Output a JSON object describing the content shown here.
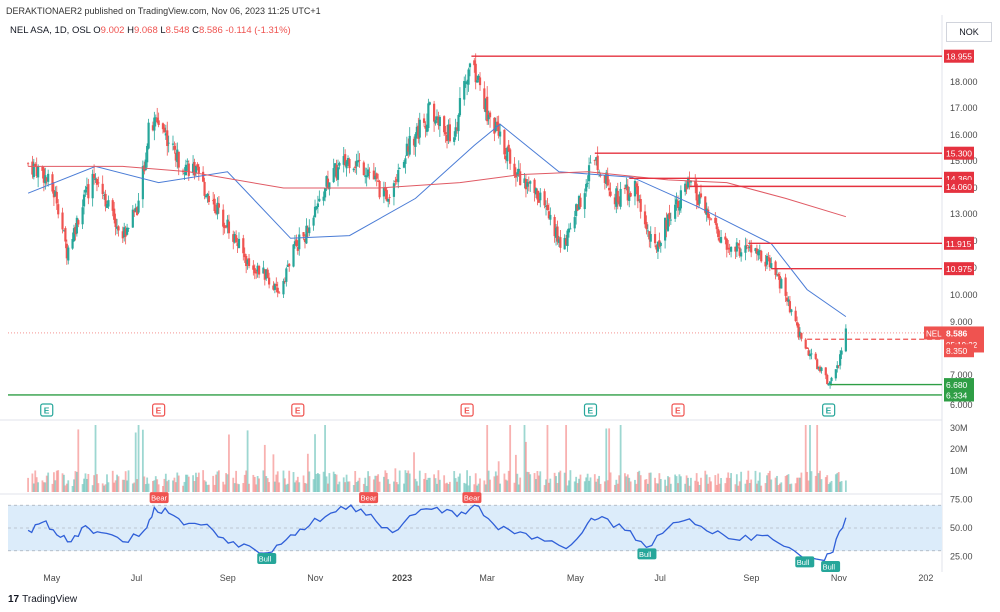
{
  "header": {
    "published": "DERAKTIONAER2 published on TradingView.com, Nov 06, 2023 11:25 UTC+1",
    "currency": "NOK",
    "footer_brand": "TradingView",
    "footer_logo": "17"
  },
  "legend": {
    "symbol": "NEL ASA, 1D, OSL",
    "o_label": "O",
    "o": "9.002",
    "h_label": "H",
    "h": "9.068",
    "l_label": "L",
    "l": "8.548",
    "c_label": "C",
    "c": "8.586",
    "change": "-0.114 (-1.31%)"
  },
  "colors": {
    "up": "#26a69a",
    "down": "#ef5350",
    "level": "#e5323f",
    "support": "#2e9e45",
    "ma_fast": "#4a7cd6",
    "ma_slow": "#e05a64",
    "rsi": "#2f5fd8",
    "rsi_band": "#dcecfa"
  },
  "chart_data": [
    {
      "type": "candlestick",
      "title": "NEL ASA, 1D, OSL",
      "ylim": [
        6,
        19.5
      ],
      "yticks": [
        "6.000",
        "7.000",
        "9.000",
        "10.000",
        "11.000",
        "12.000",
        "13.000",
        "14.000",
        "15.000",
        "16.000",
        "17.000",
        "18.000"
      ],
      "x_ticks": [
        "May",
        "Jul",
        "Sep",
        "Nov",
        "2023",
        "Mar",
        "May",
        "Jul",
        "Sep",
        "Nov",
        "202"
      ],
      "grid": false,
      "price_path": [
        [
          "2022-04-15",
          14.9
        ],
        [
          "2022-04-25",
          14.6
        ],
        [
          "2022-05-05",
          13.6
        ],
        [
          "2022-05-12",
          11.6
        ],
        [
          "2022-05-22",
          13.2
        ],
        [
          "2022-06-01",
          14.6
        ],
        [
          "2022-06-10",
          13.3
        ],
        [
          "2022-06-20",
          12.2
        ],
        [
          "2022-07-01",
          13.4
        ],
        [
          "2022-07-08",
          16.1
        ],
        [
          "2022-07-15",
          16.6
        ],
        [
          "2022-07-28",
          15.1
        ],
        [
          "2022-08-08",
          14.7
        ],
        [
          "2022-08-20",
          13.6
        ],
        [
          "2022-09-01",
          12.6
        ],
        [
          "2022-09-15",
          11.2
        ],
        [
          "2022-09-28",
          10.7
        ],
        [
          "2022-10-06",
          10.0
        ],
        [
          "2022-10-18",
          11.8
        ],
        [
          "2022-10-28",
          12.4
        ],
        [
          "2022-11-10",
          14.3
        ],
        [
          "2022-11-25",
          15.1
        ],
        [
          "2022-12-08",
          14.7
        ],
        [
          "2022-12-20",
          13.6
        ],
        [
          "2023-01-05",
          15.6
        ],
        [
          "2023-01-20",
          16.9
        ],
        [
          "2023-02-05",
          15.8
        ],
        [
          "2023-02-18",
          18.9
        ],
        [
          "2023-02-28",
          17.0
        ],
        [
          "2023-03-12",
          15.6
        ],
        [
          "2023-03-25",
          14.3
        ],
        [
          "2023-04-08",
          13.6
        ],
        [
          "2023-04-22",
          11.7
        ],
        [
          "2023-05-05",
          13.6
        ],
        [
          "2023-05-15",
          15.3
        ],
        [
          "2023-05-28",
          13.6
        ],
        [
          "2023-06-12",
          14.0
        ],
        [
          "2023-06-25",
          11.6
        ],
        [
          "2023-07-10",
          13.4
        ],
        [
          "2023-07-20",
          14.1
        ],
        [
          "2023-08-01",
          13.0
        ],
        [
          "2023-08-15",
          11.7
        ],
        [
          "2023-09-01",
          11.7
        ],
        [
          "2023-09-12",
          11.2
        ],
        [
          "2023-09-22",
          10.4
        ],
        [
          "2023-10-03",
          8.7
        ],
        [
          "2023-10-15",
          7.5
        ],
        [
          "2023-10-26",
          6.7
        ],
        [
          "2023-11-01",
          7.4
        ],
        [
          "2023-11-06",
          8.586
        ]
      ],
      "moving_averages": [
        {
          "name": "fast",
          "points": [
            [
              "2022-04-15",
              13.8
            ],
            [
              "2022-06-01",
              14.8
            ],
            [
              "2022-07-15",
              14.2
            ],
            [
              "2022-09-01",
              14.6
            ],
            [
              "2022-10-15",
              12.1
            ],
            [
              "2022-11-25",
              12.2
            ],
            [
              "2023-01-10",
              13.6
            ],
            [
              "2023-02-20",
              15.6
            ],
            [
              "2023-03-10",
              16.4
            ],
            [
              "2023-04-20",
              14.6
            ],
            [
              "2023-06-10",
              14.4
            ],
            [
              "2023-07-25",
              13.3
            ],
            [
              "2023-09-15",
              11.9
            ],
            [
              "2023-10-10",
              10.2
            ],
            [
              "2023-11-06",
              9.2
            ]
          ]
        },
        {
          "name": "slow",
          "points": [
            [
              "2022-04-15",
              14.8
            ],
            [
              "2022-06-20",
              14.8
            ],
            [
              "2022-08-05",
              14.6
            ],
            [
              "2022-10-10",
              14.0
            ],
            [
              "2022-12-15",
              14.0
            ],
            [
              "2023-02-10",
              14.2
            ],
            [
              "2023-03-25",
              14.5
            ],
            [
              "2023-05-10",
              14.6
            ],
            [
              "2023-07-05",
              14.3
            ],
            [
              "2023-08-15",
              14.2
            ],
            [
              "2023-09-25",
              13.6
            ],
            [
              "2023-11-06",
              12.9
            ]
          ]
        }
      ],
      "horizontal_levels": [
        {
          "label": "18.955",
          "value": 18.955,
          "start": "2023-02-18",
          "color": "red"
        },
        {
          "label": "15.300",
          "value": 15.3,
          "start": "2023-05-15",
          "color": "red"
        },
        {
          "label": "14.360",
          "value": 14.36,
          "start": "2023-06-08",
          "color": "red"
        },
        {
          "label": "14.060",
          "value": 14.06,
          "start": "2023-07-20",
          "color": "red"
        },
        {
          "label": "11.915",
          "value": 11.915,
          "start": "2023-08-30",
          "color": "red"
        },
        {
          "label": "10.975",
          "value": 10.975,
          "start": "2023-09-15",
          "color": "red"
        },
        {
          "label": "6.680",
          "value": 6.68,
          "start": "2023-10-26",
          "color": "green"
        },
        {
          "label": "6.334",
          "value": 6.334,
          "start": "2022-04-01",
          "color": "green"
        }
      ],
      "current_price": {
        "symbol": "NEL",
        "value": "8.586",
        "countdown": "05:19:22",
        "dashed_level_label": "8.350",
        "dashed_level_value": 8.35
      },
      "earnings_markers": [
        {
          "label": "E",
          "date": "2022-04-28",
          "color": "green"
        },
        {
          "label": "E",
          "date": "2022-07-15",
          "color": "red"
        },
        {
          "label": "E",
          "date": "2022-10-20",
          "color": "red"
        },
        {
          "label": "E",
          "date": "2023-02-15",
          "color": "red"
        },
        {
          "label": "E",
          "date": "2023-05-12",
          "color": "green"
        },
        {
          "label": "E",
          "date": "2023-07-12",
          "color": "red"
        },
        {
          "label": "E",
          "date": "2023-10-25",
          "color": "green"
        }
      ]
    },
    {
      "type": "bar",
      "title": "Volume",
      "yticks": [
        "30M",
        "20M",
        "10M"
      ],
      "ylim": [
        0,
        33000000
      ]
    },
    {
      "type": "line",
      "title": "RSI",
      "yticks": [
        "75.00",
        "50.00",
        "25.00"
      ],
      "ylim": [
        15,
        78
      ],
      "band": [
        30,
        70
      ],
      "values": [
        [
          "2022-04-15",
          48
        ],
        [
          "2022-04-25",
          55
        ],
        [
          "2022-05-05",
          44
        ],
        [
          "2022-05-15",
          38
        ],
        [
          "2022-05-25",
          52
        ],
        [
          "2022-06-05",
          46
        ],
        [
          "2022-06-20",
          38
        ],
        [
          "2022-07-05",
          48
        ],
        [
          "2022-07-12",
          68
        ],
        [
          "2022-07-22",
          63
        ],
        [
          "2022-08-05",
          54
        ],
        [
          "2022-08-22",
          48
        ],
        [
          "2022-09-05",
          38
        ],
        [
          "2022-09-20",
          31
        ],
        [
          "2022-10-02",
          29
        ],
        [
          "2022-10-15",
          44
        ],
        [
          "2022-10-28",
          52
        ],
        [
          "2022-11-12",
          63
        ],
        [
          "2022-11-26",
          70
        ],
        [
          "2022-12-10",
          62
        ],
        [
          "2022-12-25",
          46
        ],
        [
          "2023-01-10",
          62
        ],
        [
          "2023-01-25",
          68
        ],
        [
          "2023-02-08",
          60
        ],
        [
          "2023-02-20",
          70
        ],
        [
          "2023-03-05",
          54
        ],
        [
          "2023-03-20",
          45
        ],
        [
          "2023-04-05",
          42
        ],
        [
          "2023-04-25",
          32
        ],
        [
          "2023-05-10",
          54
        ],
        [
          "2023-05-20",
          60
        ],
        [
          "2023-06-05",
          48
        ],
        [
          "2023-06-20",
          33
        ],
        [
          "2023-07-05",
          50
        ],
        [
          "2023-07-20",
          58
        ],
        [
          "2023-08-05",
          45
        ],
        [
          "2023-08-20",
          40
        ],
        [
          "2023-09-05",
          44
        ],
        [
          "2023-09-20",
          37
        ],
        [
          "2023-10-05",
          26
        ],
        [
          "2023-10-20",
          22
        ],
        [
          "2023-10-28",
          29
        ],
        [
          "2023-11-06",
          59
        ]
      ],
      "signals": [
        {
          "label": "Bear",
          "date": "2022-07-15",
          "value": 70
        },
        {
          "label": "Bull",
          "date": "2022-09-28",
          "value": 29
        },
        {
          "label": "Bear",
          "date": "2022-12-08",
          "value": 70
        },
        {
          "label": "Bear",
          "date": "2023-02-18",
          "value": 70
        },
        {
          "label": "Bull",
          "date": "2023-06-20",
          "value": 33
        },
        {
          "label": "Bull",
          "date": "2023-10-08",
          "value": 26
        },
        {
          "label": "Bull",
          "date": "2023-10-26",
          "value": 22
        }
      ]
    }
  ]
}
